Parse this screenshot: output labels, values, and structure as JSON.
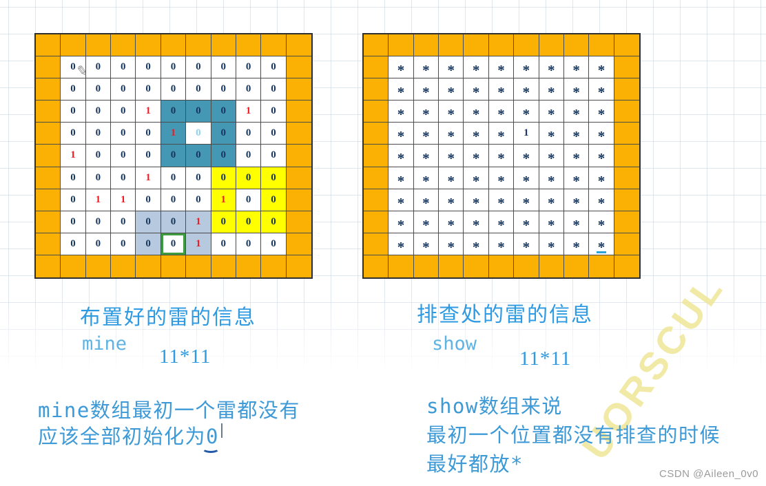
{
  "colors": {
    "orange": "#FBB004",
    "teal": "#4598B4",
    "yellow": "#FFFF00",
    "bluegray": "#B7C9DE",
    "navy": "#17365D",
    "red": "#ED1C24",
    "cyan": "#8FD1EE",
    "green_border": "#3E9C3E",
    "underline_blue": "#2BA3D8",
    "caption_blue": "#2E9AE2",
    "code_blue": "#5FB3E4",
    "note_blue": "#3D9AD6"
  },
  "mine_grid": {
    "size_label": "11*11",
    "rows": [
      [
        "0",
        "0",
        "0",
        "0",
        "0",
        "0",
        "0",
        "0",
        "0"
      ],
      [
        "0",
        "0",
        "0",
        "0",
        "0",
        "0",
        "0",
        "0",
        "0"
      ],
      [
        "0",
        "0",
        "0",
        "r1",
        "T0",
        "T0",
        "T0",
        "r1",
        "0"
      ],
      [
        "0",
        "0",
        "0",
        "0",
        "Tr1",
        "c0",
        "T0",
        "0",
        "0"
      ],
      [
        "r1",
        "0",
        "0",
        "0",
        "T0",
        "T0",
        "T0",
        "0",
        "0"
      ],
      [
        "0",
        "0",
        "0",
        "r1",
        "0",
        "0",
        "Y0",
        "Y0",
        "Y0"
      ],
      [
        "0",
        "r1",
        "r1",
        "0",
        "0",
        "0",
        "Yr1",
        "0",
        "Y0"
      ],
      [
        "0",
        "0",
        "0",
        "B0",
        "B0",
        "Br1",
        "Y0",
        "Y0",
        "Y0"
      ],
      [
        "0",
        "0",
        "0",
        "B0",
        "G0",
        "Br1",
        "0",
        "0",
        "0"
      ]
    ]
  },
  "show_grid": {
    "size_label": "11*11",
    "rows": [
      [
        "*",
        "*",
        "*",
        "*",
        "*",
        "*",
        "*",
        "*",
        "*"
      ],
      [
        "*",
        "*",
        "*",
        "*",
        "*",
        "*",
        "*",
        "*",
        "*"
      ],
      [
        "*",
        "*",
        "*",
        "*",
        "*",
        "*",
        "*",
        "*",
        "*"
      ],
      [
        "*",
        "*",
        "*",
        "*",
        "*",
        "1",
        "*",
        "*",
        "*"
      ],
      [
        "*",
        "*",
        "*",
        "*",
        "*",
        "*",
        "*",
        "*",
        "*"
      ],
      [
        "*",
        "*",
        "*",
        "*",
        "*",
        "*",
        "*",
        "*",
        "*"
      ],
      [
        "*",
        "*",
        "*",
        "*",
        "*",
        "*",
        "*",
        "*",
        "*"
      ],
      [
        "*",
        "*",
        "*",
        "*",
        "*",
        "*",
        "*",
        "*",
        "*"
      ],
      [
        "*",
        "*",
        "*",
        "*",
        "*",
        "*",
        "*",
        "*",
        "u*"
      ]
    ]
  },
  "labels": {
    "left_caption": "布置好的雷的信息",
    "left_array": "mine",
    "left_size": "11*11",
    "right_caption": "排查处的雷的信息",
    "right_array": "show",
    "right_size": "11*11"
  },
  "notes": {
    "left_line1": "mine数组最初一个雷都没有",
    "left_line2": "应该全部初始化为0",
    "right_line1": "show数组来说",
    "right_line2": "最初一个位置都没有排查的时候",
    "right_line3": "最好都放*"
  },
  "icons": {
    "pencil": "✎"
  },
  "watermark": {
    "csdn": "CSDN @Aileen_0v0",
    "diagonal": "UORSCUL"
  }
}
